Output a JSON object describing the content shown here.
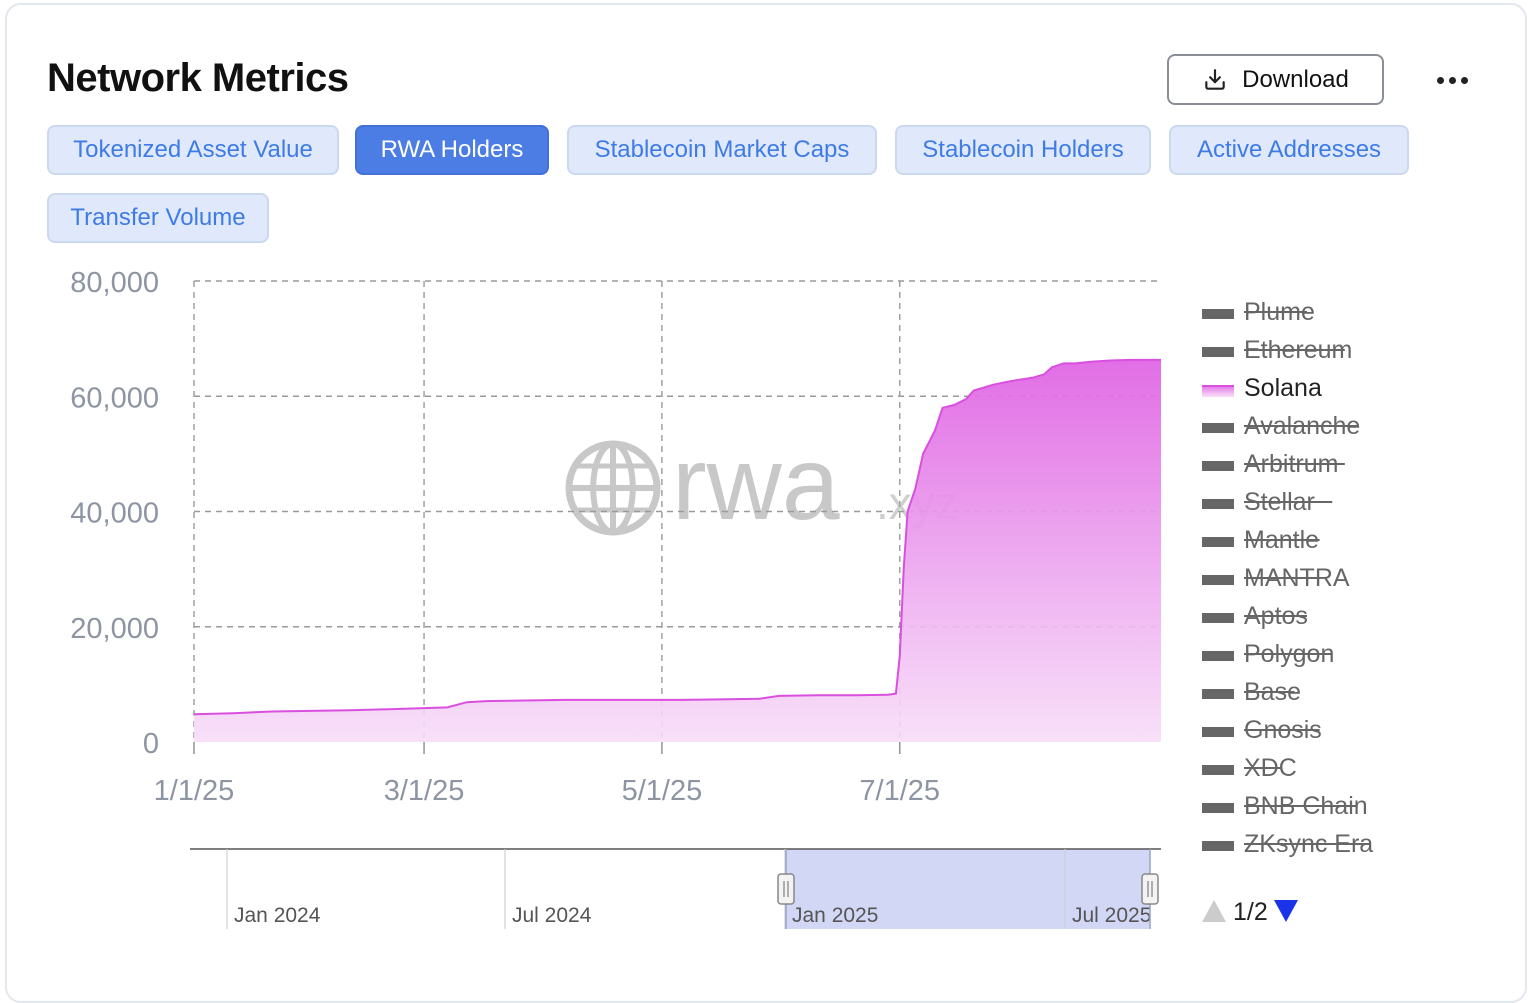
{
  "header": {
    "title": "Network Metrics",
    "download_label": "Download"
  },
  "tabs": [
    {
      "label": "Tokenized Asset Value",
      "active": false
    },
    {
      "label": "RWA Holders",
      "active": true
    },
    {
      "label": "Stablecoin Market Caps",
      "active": false
    },
    {
      "label": "Stablecoin Holders",
      "active": false
    },
    {
      "label": "Active Addresses",
      "active": false
    },
    {
      "label": "Transfer Volume",
      "active": false
    }
  ],
  "watermark": {
    "main": "rwa",
    "suffix": ".xyz"
  },
  "colors": {
    "series": "#d94fe0",
    "area_top": "#e066e4",
    "area_bottom": "#f7ddf8",
    "tab_active_bg": "#4b7de5",
    "tab_bg": "#dfe9fb",
    "legend_disabled": "#666666",
    "zoom_window": "#cdd3f5"
  },
  "chart_data": {
    "type": "area",
    "title": "RWA Holders",
    "x_axis": {
      "range": [
        0,
        248
      ],
      "ticks": [
        {
          "x": 0,
          "label": "1/1/25"
        },
        {
          "x": 59,
          "label": "3/1/25"
        },
        {
          "x": 120,
          "label": "5/1/25"
        },
        {
          "x": 181,
          "label": "7/1/25"
        }
      ]
    },
    "y_axis": {
      "range": [
        0,
        80000
      ],
      "ticks": [
        {
          "v": 0,
          "label": "0"
        },
        {
          "v": 20000,
          "label": "20,000"
        },
        {
          "v": 40000,
          "label": "40,000"
        },
        {
          "v": 60000,
          "label": "60,000"
        },
        {
          "v": 80000,
          "label": "80,000"
        }
      ]
    },
    "grid": true,
    "series": [
      {
        "name": "Solana",
        "points": [
          [
            0,
            4800
          ],
          [
            10,
            5000
          ],
          [
            20,
            5300
          ],
          [
            30,
            5400
          ],
          [
            40,
            5500
          ],
          [
            50,
            5700
          ],
          [
            60,
            5900
          ],
          [
            65,
            6000
          ],
          [
            70,
            6900
          ],
          [
            75,
            7100
          ],
          [
            85,
            7200
          ],
          [
            95,
            7300
          ],
          [
            105,
            7300
          ],
          [
            115,
            7300
          ],
          [
            125,
            7300
          ],
          [
            135,
            7400
          ],
          [
            145,
            7500
          ],
          [
            150,
            8000
          ],
          [
            160,
            8100
          ],
          [
            170,
            8100
          ],
          [
            178,
            8200
          ],
          [
            180,
            8400
          ],
          [
            181,
            15000
          ],
          [
            182,
            30000
          ],
          [
            183,
            40000
          ],
          [
            185,
            44000
          ],
          [
            187,
            50000
          ],
          [
            190,
            54000
          ],
          [
            192,
            58000
          ],
          [
            195,
            58500
          ],
          [
            198,
            59500
          ],
          [
            200,
            61000
          ],
          [
            205,
            62000
          ],
          [
            210,
            62700
          ],
          [
            215,
            63200
          ],
          [
            218,
            63800
          ],
          [
            220,
            65000
          ],
          [
            223,
            65700
          ],
          [
            226,
            65700
          ],
          [
            230,
            66000
          ],
          [
            235,
            66200
          ],
          [
            240,
            66300
          ],
          [
            248,
            66300
          ]
        ]
      }
    ],
    "legend": {
      "placement": "right",
      "page": "1/2",
      "items": [
        {
          "name": "Plume",
          "enabled": false
        },
        {
          "name": "Ethereum",
          "enabled": false
        },
        {
          "name": "Solana",
          "enabled": true
        },
        {
          "name": "Avalanche",
          "enabled": false
        },
        {
          "name": "Arbitrum",
          "enabled": false
        },
        {
          "name": "Stellar",
          "enabled": false
        },
        {
          "name": "Mantle",
          "enabled": false
        },
        {
          "name": "MANTRA",
          "enabled": false
        },
        {
          "name": "Aptos",
          "enabled": false
        },
        {
          "name": "Polygon",
          "enabled": false
        },
        {
          "name": "Base",
          "enabled": false
        },
        {
          "name": "Gnosis",
          "enabled": false
        },
        {
          "name": "XDC",
          "enabled": false
        },
        {
          "name": "BNB Chain",
          "enabled": false
        },
        {
          "name": "ZKsync Era",
          "enabled": false
        }
      ]
    },
    "navigator": {
      "labels": [
        "Jan 2024",
        "Jul 2024",
        "Jan 2025",
        "Jul 2025"
      ],
      "selected_range": [
        "1/1/25",
        "present"
      ]
    }
  }
}
